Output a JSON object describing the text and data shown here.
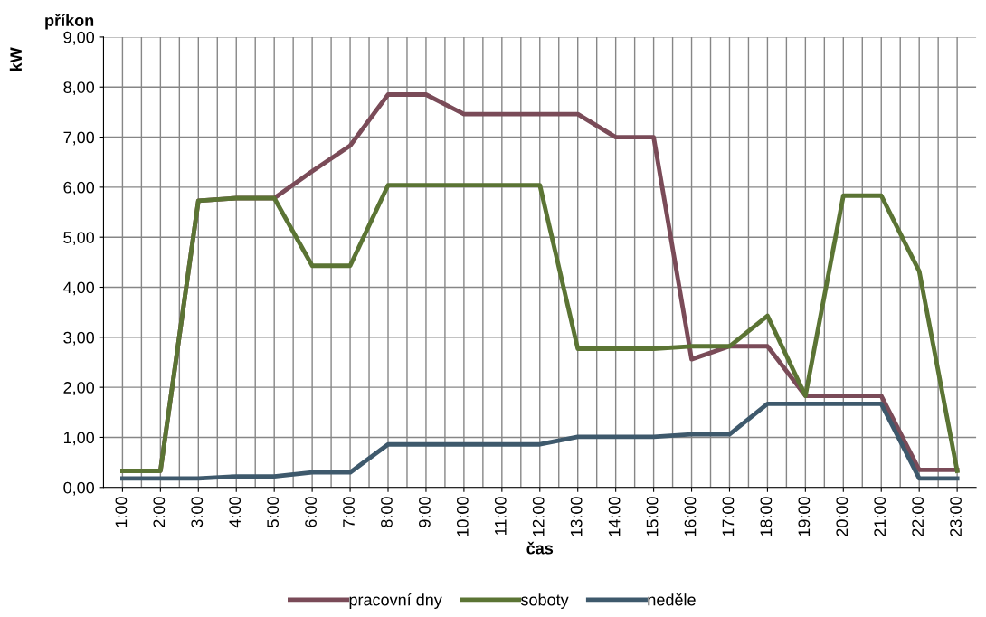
{
  "chart_data": {
    "type": "line",
    "title": "příkon",
    "ylabel": "kW",
    "xlabel": "čas",
    "categories": [
      "1:00",
      "2:00",
      "3:00",
      "4:00",
      "5:00",
      "6:00",
      "7:00",
      "8:00",
      "9:00",
      "10:00",
      "11:00",
      "12:00",
      "13:00",
      "14:00",
      "15:00",
      "16:00",
      "17:00",
      "18:00",
      "19:00",
      "20:00",
      "21:00",
      "22:00",
      "23:00"
    ],
    "series": [
      {
        "name": "pracovní dny",
        "color": "#7a4b58",
        "values": [
          0.33,
          0.33,
          5.73,
          5.78,
          5.78,
          6.32,
          6.83,
          7.85,
          7.85,
          7.46,
          7.46,
          7.46,
          7.46,
          7.0,
          7.0,
          2.56,
          2.82,
          2.82,
          1.83,
          1.83,
          1.83,
          0.35,
          0.35
        ]
      },
      {
        "name": "soboty",
        "color": "#5b7434",
        "values": [
          0.33,
          0.33,
          5.73,
          5.78,
          5.78,
          4.43,
          4.43,
          6.04,
          6.04,
          6.04,
          6.04,
          6.04,
          2.77,
          2.77,
          2.77,
          2.82,
          2.82,
          3.43,
          1.83,
          5.83,
          5.83,
          4.32,
          0.33
        ]
      },
      {
        "name": "neděle",
        "color": "#3e596c",
        "values": [
          0.18,
          0.18,
          0.18,
          0.22,
          0.22,
          0.3,
          0.3,
          0.86,
          0.86,
          0.86,
          0.86,
          0.86,
          1.01,
          1.01,
          1.01,
          1.06,
          1.06,
          1.67,
          1.67,
          1.67,
          1.67,
          0.18,
          0.18
        ]
      }
    ],
    "ylim": [
      0,
      9
    ],
    "yticks": [
      {
        "value": 0,
        "label": "0,00"
      },
      {
        "value": 1,
        "label": "1,00"
      },
      {
        "value": 2,
        "label": "2,00"
      },
      {
        "value": 3,
        "label": "3,00"
      },
      {
        "value": 4,
        "label": "4,00"
      },
      {
        "value": 5,
        "label": "5,00"
      },
      {
        "value": 6,
        "label": "6,00"
      },
      {
        "value": 7,
        "label": "7,00"
      },
      {
        "value": 8,
        "label": "8,00"
      },
      {
        "value": 9,
        "label": "9,00"
      }
    ],
    "grid": true,
    "legend": "bottom",
    "marker": "none",
    "line_style": "solid"
  }
}
